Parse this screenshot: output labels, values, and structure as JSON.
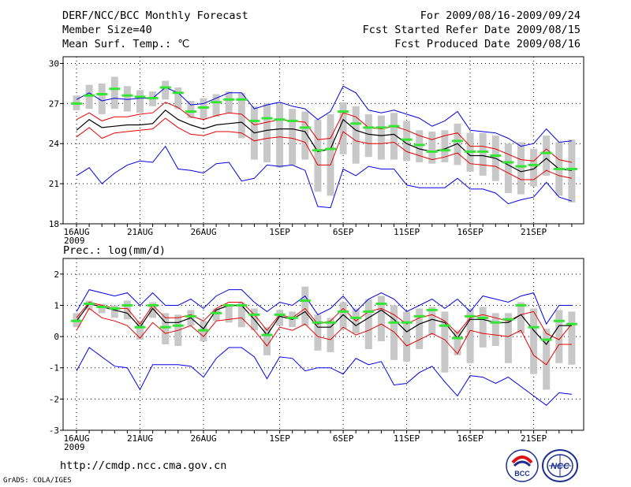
{
  "header": {
    "title": "DERF/NCC/BCC Monthly Forecast",
    "member_size": "Member Size=40",
    "variable": "Mean Surf. Temp.: ℃",
    "period": "For 2009/08/16-2009/09/24",
    "start_date": "Fcst Started Refer Date 2009/08/15",
    "produced_date": "Fcst Produced Date 2009/08/16"
  },
  "footer": {
    "url": "http://cmdp.ncc.cma.gov.cn",
    "credit": "GrADS: COLA/IGES",
    "logo_left_text": "BCC",
    "logo_right_text": "NCC"
  },
  "colors": {
    "box": "#c8c8c8",
    "median": "#33e633",
    "mean": "#000000",
    "std": "#e60000",
    "extreme": "#0000e6"
  },
  "chart_data": [
    {
      "type": "line",
      "title": "Mean Surf. Temp.: ℃",
      "x_ticks": [
        "16AUG\n2009",
        "21AUG",
        "26AUG",
        "1SEP",
        "6SEP",
        "11SEP",
        "16SEP",
        "21SEP"
      ],
      "x_tick_days": [
        0,
        5,
        10,
        16,
        21,
        26,
        31,
        36
      ],
      "ylim": [
        18,
        30.5
      ],
      "yticks": [
        18,
        21,
        24,
        27,
        30
      ],
      "days": [
        0,
        1,
        2,
        3,
        4,
        5,
        6,
        7,
        8,
        9,
        10,
        11,
        12,
        13,
        14,
        15,
        16,
        17,
        18,
        19,
        20,
        21,
        22,
        23,
        24,
        25,
        26,
        27,
        28,
        29,
        30,
        31,
        32,
        33,
        34,
        35,
        36,
        37,
        38,
        39
      ],
      "series": [
        {
          "name": "max",
          "values": [
            27.3,
            27.8,
            27.2,
            27.4,
            27.3,
            27.4,
            27.4,
            28.2,
            27.8,
            26.9,
            27.0,
            27.4,
            27.8,
            27.8,
            26.6,
            26.9,
            27.1,
            26.8,
            26.6,
            25.8,
            26.4,
            28.3,
            27.8,
            26.5,
            26.3,
            26.5,
            26.2,
            25.9,
            25.3,
            25.7,
            26.4,
            25.0,
            24.9,
            24.8,
            24.4,
            23.8,
            24.0,
            25.1,
            24.1,
            24.2
          ]
        },
        {
          "name": "mean_plus_std",
          "values": [
            25.8,
            26.3,
            25.7,
            26.0,
            26.0,
            26.2,
            26.3,
            27.1,
            26.7,
            26.0,
            25.8,
            26.1,
            26.3,
            26.2,
            25.4,
            25.6,
            25.8,
            25.7,
            25.6,
            24.3,
            24.4,
            26.3,
            26.0,
            25.2,
            25.1,
            25.3,
            25.0,
            24.6,
            24.3,
            24.6,
            24.8,
            23.8,
            23.8,
            23.6,
            23.2,
            22.8,
            22.7,
            23.6,
            22.8,
            22.6
          ]
        },
        {
          "name": "mean",
          "values": [
            25.0,
            25.8,
            25.2,
            25.3,
            25.4,
            25.4,
            25.5,
            26.5,
            25.8,
            25.4,
            25.1,
            25.4,
            25.5,
            25.6,
            24.8,
            25.0,
            25.1,
            25.1,
            24.9,
            23.4,
            23.6,
            25.8,
            25.0,
            24.7,
            24.6,
            24.7,
            24.0,
            23.6,
            23.4,
            23.6,
            24.0,
            23.1,
            23.1,
            22.9,
            22.4,
            21.9,
            22.1,
            22.9,
            22.1,
            22.0
          ]
        },
        {
          "name": "mean_minus_std",
          "values": [
            24.5,
            25.2,
            24.4,
            24.8,
            24.9,
            25.0,
            25.1,
            25.9,
            25.2,
            24.7,
            24.6,
            24.9,
            24.9,
            24.8,
            24.2,
            24.4,
            24.5,
            24.4,
            24.1,
            22.4,
            22.4,
            24.9,
            24.2,
            24.0,
            24.0,
            24.1,
            23.4,
            23.1,
            22.8,
            23.0,
            23.3,
            22.5,
            22.4,
            22.3,
            21.8,
            21.3,
            21.3,
            22.0,
            21.6,
            21.4
          ]
        },
        {
          "name": "min",
          "values": [
            21.6,
            22.2,
            21.0,
            21.8,
            22.4,
            22.7,
            22.6,
            23.8,
            22.1,
            22.0,
            21.8,
            22.5,
            22.6,
            21.2,
            21.4,
            22.4,
            22.3,
            22.4,
            22.0,
            19.3,
            19.2,
            22.1,
            21.6,
            22.3,
            22.1,
            22.1,
            20.9,
            20.7,
            20.7,
            20.7,
            21.4,
            20.6,
            20.6,
            20.3,
            19.5,
            19.8,
            20.0,
            21.1,
            20.0,
            19.7
          ]
        },
        {
          "name": "median",
          "values": [
            27.0,
            27.6,
            27.7,
            28.1,
            27.6,
            27.5,
            27.4,
            28.2,
            27.8,
            26.4,
            26.7,
            27.1,
            27.3,
            27.3,
            25.7,
            25.9,
            25.8,
            25.7,
            25.2,
            23.5,
            23.6,
            26.4,
            25.5,
            25.2,
            25.2,
            25.3,
            24.3,
            23.9,
            23.4,
            23.5,
            24.2,
            23.4,
            23.4,
            23.1,
            22.6,
            22.3,
            22.4,
            23.3,
            22.1,
            22.1
          ]
        },
        {
          "name": "box_top",
          "values": [
            27.6,
            28.4,
            28.5,
            29.0,
            28.3,
            28.0,
            27.9,
            28.7,
            28.2,
            27.2,
            27.4,
            27.7,
            27.9,
            27.8,
            26.8,
            27.0,
            27.0,
            26.6,
            26.4,
            25.8,
            26.2,
            27.1,
            26.8,
            26.2,
            26.1,
            26.3,
            25.7,
            25.0,
            24.9,
            25.0,
            25.5,
            24.8,
            24.8,
            24.6,
            24.0,
            24.1,
            23.6,
            24.6,
            24.1,
            24.3
          ]
        },
        {
          "name": "box_bottom",
          "values": [
            26.5,
            26.6,
            26.2,
            26.6,
            26.4,
            26.3,
            26.8,
            27.3,
            26.6,
            25.9,
            25.8,
            26.0,
            26.3,
            24.4,
            22.8,
            22.6,
            22.2,
            22.4,
            22.8,
            20.4,
            20.1,
            23.2,
            22.5,
            23.0,
            22.8,
            22.8,
            22.7,
            22.6,
            22.5,
            22.6,
            22.4,
            21.9,
            21.6,
            21.2,
            20.3,
            20.2,
            20.8,
            21.6,
            20.1,
            19.6
          ]
        }
      ]
    },
    {
      "type": "line",
      "title": "Prec.: log(mm/d)",
      "x_ticks": [
        "16AUG\n2009",
        "21AUG",
        "26AUG",
        "1SEP",
        "6SEP",
        "11SEP",
        "16SEP",
        "21SEP"
      ],
      "x_tick_days": [
        0,
        5,
        10,
        16,
        21,
        26,
        31,
        36
      ],
      "ylim": [
        -3,
        2.5
      ],
      "yticks": [
        -3,
        -2,
        -1,
        0,
        1,
        2
      ],
      "days": [
        0,
        1,
        2,
        3,
        4,
        5,
        6,
        7,
        8,
        9,
        10,
        11,
        12,
        13,
        14,
        15,
        16,
        17,
        18,
        19,
        20,
        21,
        22,
        23,
        24,
        25,
        26,
        27,
        28,
        29,
        30,
        31,
        32,
        33,
        34,
        35,
        36,
        37,
        38,
        39
      ],
      "series": [
        {
          "name": "max",
          "values": [
            0.8,
            1.5,
            1.4,
            1.3,
            1.4,
            1.0,
            1.4,
            1.0,
            1.0,
            1.2,
            0.9,
            1.3,
            1.5,
            1.5,
            1.1,
            0.8,
            1.1,
            1.0,
            1.3,
            0.7,
            0.9,
            1.3,
            0.8,
            1.2,
            1.4,
            1.2,
            0.8,
            1.0,
            1.2,
            0.9,
            1.2,
            0.8,
            1.3,
            1.2,
            1.1,
            1.3,
            1.4,
            0.4,
            1.0,
            1.0
          ]
        },
        {
          "name": "mean_plus_std",
          "values": [
            0.6,
            1.1,
            1.0,
            0.9,
            0.9,
            0.4,
            1.0,
            0.6,
            0.6,
            0.7,
            0.5,
            0.9,
            1.1,
            1.1,
            0.7,
            0.2,
            0.7,
            0.6,
            0.9,
            0.4,
            0.5,
            0.9,
            0.5,
            0.8,
            0.9,
            0.7,
            0.4,
            0.6,
            0.7,
            0.5,
            0.1,
            0.6,
            0.7,
            0.6,
            0.5,
            0.7,
            0.8,
            0.1,
            -0.1,
            0.4
          ]
        },
        {
          "name": "mean",
          "values": [
            0.5,
            1.05,
            0.95,
            0.85,
            0.75,
            0.3,
            0.9,
            0.45,
            0.45,
            0.6,
            0.25,
            0.85,
            1.0,
            1.0,
            0.55,
            0.05,
            0.65,
            0.55,
            0.8,
            0.3,
            0.3,
            0.7,
            0.35,
            0.6,
            0.85,
            0.55,
            0.15,
            0.4,
            0.55,
            0.45,
            -0.05,
            0.55,
            0.55,
            0.45,
            0.45,
            0.7,
            0.2,
            -0.25,
            0.35,
            0.35
          ]
        },
        {
          "name": "mean_minus_std",
          "values": [
            0.2,
            0.9,
            0.6,
            0.5,
            0.35,
            -0.05,
            0.45,
            0.1,
            0.2,
            0.35,
            0.0,
            0.5,
            0.55,
            0.6,
            0.2,
            -0.3,
            0.3,
            0.2,
            0.4,
            0.0,
            -0.1,
            0.3,
            0.05,
            0.2,
            0.4,
            0.15,
            -0.3,
            -0.1,
            0.1,
            -0.1,
            -0.55,
            0.2,
            0.1,
            0.05,
            0.0,
            0.2,
            -0.6,
            -0.9,
            -0.25,
            -0.25
          ]
        },
        {
          "name": "min",
          "values": [
            -1.1,
            -0.35,
            -0.65,
            -0.95,
            -1.0,
            -1.7,
            -0.9,
            -0.9,
            -0.9,
            -0.95,
            -1.3,
            -0.7,
            -0.35,
            -0.35,
            -0.65,
            -1.35,
            -0.65,
            -0.7,
            -1.1,
            -1.0,
            -1.0,
            -1.2,
            -0.7,
            -0.9,
            -0.8,
            -1.55,
            -1.5,
            -1.15,
            -0.95,
            -1.45,
            -1.9,
            -1.25,
            -1.3,
            -1.5,
            -1.3,
            -1.6,
            -1.9,
            -2.2,
            -1.8,
            -1.85
          ]
        },
        {
          "name": "median",
          "values": [
            0.5,
            1.05,
            0.95,
            0.9,
            1.0,
            0.3,
            1.0,
            0.3,
            0.35,
            0.65,
            0.2,
            0.75,
            1.0,
            1.0,
            0.7,
            0.05,
            0.7,
            0.6,
            1.15,
            0.45,
            0.45,
            0.8,
            0.6,
            0.8,
            1.05,
            0.45,
            0.45,
            0.65,
            0.85,
            0.35,
            -0.05,
            0.65,
            0.6,
            0.45,
            0.55,
            1.0,
            0.3,
            -0.1,
            0.5,
            0.4
          ]
        },
        {
          "name": "box_top",
          "values": [
            0.75,
            1.15,
            1.05,
            1.0,
            1.15,
            0.5,
            1.1,
            0.75,
            0.7,
            0.85,
            0.5,
            0.9,
            1.0,
            1.1,
            0.9,
            0.3,
            0.85,
            0.8,
            1.6,
            0.7,
            0.6,
            1.1,
            0.9,
            1.2,
            1.3,
            1.0,
            0.8,
            0.9,
            0.95,
            0.8,
            0.2,
            0.9,
            0.95,
            0.75,
            0.75,
            1.1,
            0.9,
            0.25,
            0.85,
            0.8
          ]
        },
        {
          "name": "box_bottom",
          "values": [
            0.3,
            0.85,
            0.75,
            0.6,
            0.55,
            -0.1,
            0.6,
            -0.25,
            -0.3,
            0.35,
            -0.15,
            0.5,
            0.45,
            0.3,
            0.2,
            -0.6,
            0.35,
            0.3,
            0.35,
            -0.45,
            -0.5,
            0.25,
            0.1,
            -0.4,
            -0.15,
            -0.75,
            -0.8,
            -0.4,
            0.05,
            -1.15,
            -0.6,
            -0.85,
            -0.35,
            -0.3,
            -0.85,
            0.1,
            -1.2,
            -1.7,
            -0.85,
            -0.9
          ]
        }
      ]
    }
  ]
}
